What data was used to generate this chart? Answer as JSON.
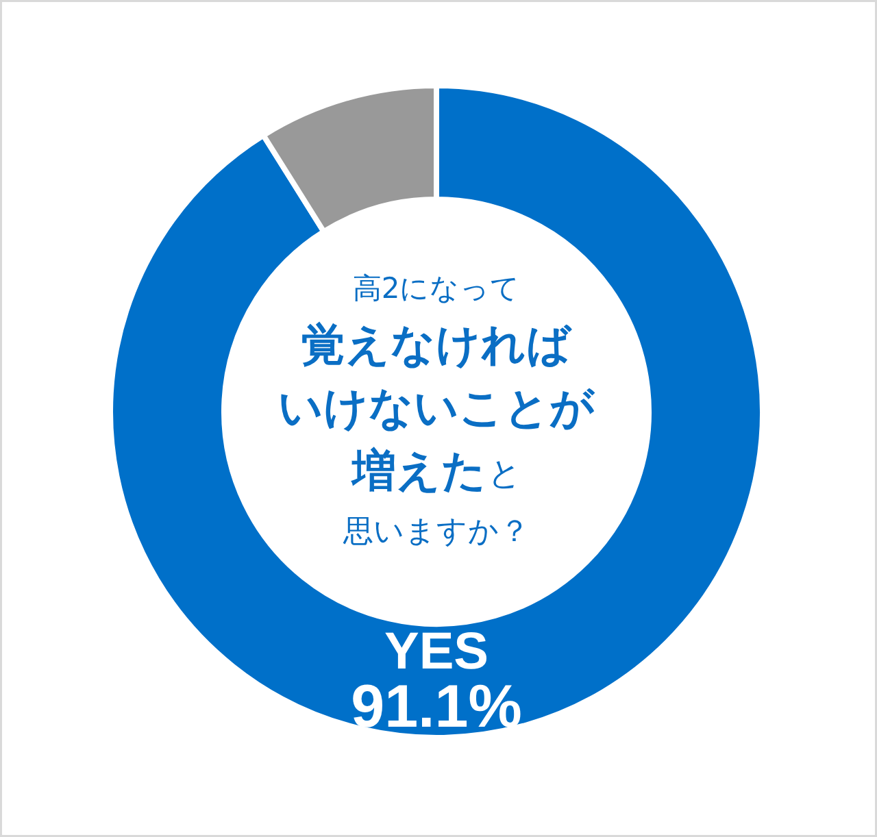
{
  "chart_data": {
    "type": "donut",
    "title": "高2になって覚えなければいけないことが増えたと思いますか？",
    "categories": [
      "YES",
      null
    ],
    "values": [
      91.1,
      8.9
    ],
    "colors": [
      "#0070c9",
      "#999999"
    ],
    "value_labels": [
      "91.1%",
      null
    ]
  }
}
